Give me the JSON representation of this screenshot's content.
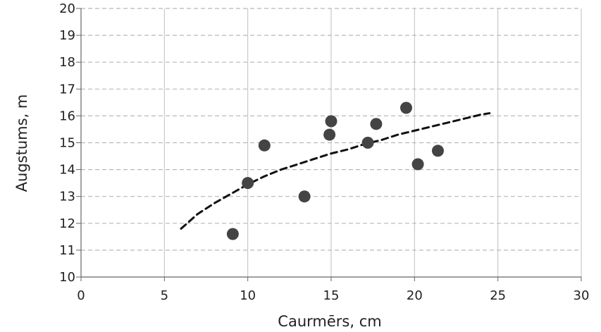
{
  "chart_data": {
    "type": "scatter",
    "title": "",
    "xlabel": "Caurmērs, cm",
    "ylabel": "Augstums, m",
    "xlim": [
      0,
      30
    ],
    "ylim": [
      10,
      20
    ],
    "x_ticks": [
      0,
      5,
      10,
      15,
      20,
      25,
      30
    ],
    "y_ticks": [
      10,
      11,
      12,
      13,
      14,
      15,
      16,
      17,
      18,
      19,
      20
    ],
    "grid": {
      "vertical": "solid",
      "horizontal": "dashed"
    },
    "legend": "none",
    "colors": {
      "points": "#444444",
      "trend": "#111111",
      "vertical_grid": "#bfbfbf",
      "horizontal_grid": "#b8b8b8",
      "axis": "#666666"
    },
    "series": [
      {
        "kind": "points",
        "x": [
          9.1,
          10.0,
          11.0,
          13.4,
          14.9,
          15.0,
          17.2,
          17.7,
          19.5,
          20.2,
          21.4
        ],
        "y": [
          11.6,
          13.5,
          14.9,
          13.0,
          15.3,
          15.8,
          15.0,
          15.7,
          16.3,
          14.2,
          14.7
        ]
      },
      {
        "kind": "trendline",
        "style": "dashed",
        "x": [
          6.0,
          7.0,
          8.0,
          9.0,
          10.0,
          11.0,
          12.0,
          13.0,
          14.0,
          15.0,
          16.0,
          17.0,
          18.0,
          19.0,
          20.0,
          21.0,
          22.0,
          23.0,
          24.0,
          24.5
        ],
        "y": [
          11.8,
          12.35,
          12.75,
          13.1,
          13.45,
          13.75,
          14.0,
          14.2,
          14.4,
          14.6,
          14.75,
          14.95,
          15.1,
          15.3,
          15.45,
          15.6,
          15.75,
          15.9,
          16.05,
          16.1
        ]
      }
    ]
  }
}
